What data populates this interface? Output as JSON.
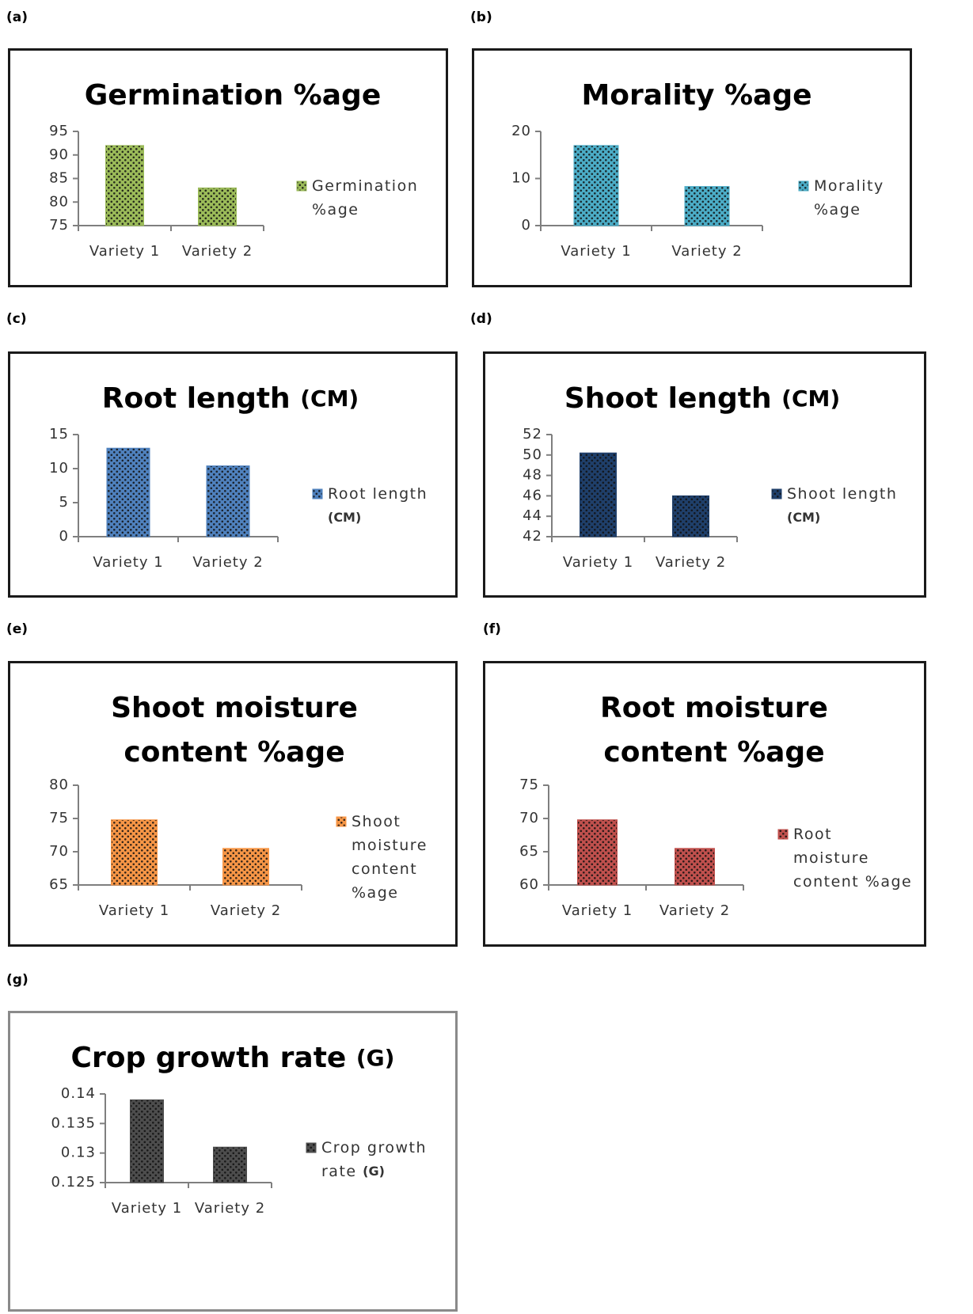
{
  "panel_labels": [
    "(a)",
    "(b)",
    "(c)",
    "(d)",
    "(e)",
    "(f)",
    "(g)"
  ],
  "chart_data": [
    {
      "id": "a",
      "type": "bar",
      "title_lines": [
        [
          {
            "text": "Germination %age"
          }
        ]
      ],
      "categories": [
        "Variety 1",
        "Variety 2"
      ],
      "series": [
        {
          "name": "Germination %age",
          "values": [
            92,
            83
          ]
        }
      ],
      "ylim": [
        75,
        95
      ],
      "yticks": [
        95,
        90,
        85,
        80,
        75
      ],
      "legend_lines": [
        [
          {
            "text": "Germination"
          }
        ],
        [
          {
            "text": "%age"
          }
        ]
      ],
      "legend": "right",
      "grid": false,
      "color": "#9bbb59"
    },
    {
      "id": "b",
      "type": "bar",
      "title_lines": [
        [
          {
            "text": "Morality %age"
          }
        ]
      ],
      "categories": [
        "Variety 1",
        "Variety 2"
      ],
      "series": [
        {
          "name": "Morality %age",
          "values": [
            17,
            8.3
          ]
        }
      ],
      "ylim": [
        0,
        20
      ],
      "yticks": [
        20,
        10,
        0
      ],
      "legend_lines": [
        [
          {
            "text": "Morality"
          }
        ],
        [
          {
            "text": "%age"
          }
        ]
      ],
      "legend": "right",
      "grid": false,
      "color": "#4bacc6"
    },
    {
      "id": "c",
      "type": "bar",
      "title_lines": [
        [
          {
            "text": "Root length "
          },
          {
            "text": "(CM)",
            "unit": true
          }
        ]
      ],
      "categories": [
        "Variety 1",
        "Variety 2"
      ],
      "series": [
        {
          "name": "Root length (CM)",
          "values": [
            13,
            10.4
          ]
        }
      ],
      "ylim": [
        0,
        15
      ],
      "yticks": [
        15,
        10,
        5,
        0
      ],
      "legend_lines": [
        [
          {
            "text": "Root length"
          }
        ],
        [
          {
            "text": "(CM)",
            "unit": true
          }
        ]
      ],
      "legend": "right",
      "grid": false,
      "color": "#4f81bd"
    },
    {
      "id": "d",
      "type": "bar",
      "title_lines": [
        [
          {
            "text": "Shoot length "
          },
          {
            "text": "(CM)",
            "unit": true
          }
        ]
      ],
      "categories": [
        "Variety 1",
        "Variety 2"
      ],
      "series": [
        {
          "name": "Shoot length (CM)",
          "values": [
            50.2,
            46
          ]
        }
      ],
      "ylim": [
        42,
        52
      ],
      "yticks": [
        52,
        50,
        48,
        46,
        44,
        42
      ],
      "legend_lines": [
        [
          {
            "text": "Shoot length"
          }
        ],
        [
          {
            "text": "(CM)",
            "unit": true
          }
        ]
      ],
      "legend": "right",
      "grid": false,
      "color": "#1f3f6a"
    },
    {
      "id": "e",
      "type": "bar",
      "title_lines": [
        [
          {
            "text": "Shoot moisture"
          }
        ],
        [
          {
            "text": "content %age"
          }
        ]
      ],
      "categories": [
        "Variety 1",
        "Variety 2"
      ],
      "series": [
        {
          "name": "Shoot moisture content %age",
          "values": [
            74.8,
            70.5
          ]
        }
      ],
      "ylim": [
        65,
        80
      ],
      "yticks": [
        80,
        75,
        70,
        65
      ],
      "legend_lines": [
        [
          {
            "text": "Shoot"
          }
        ],
        [
          {
            "text": "moisture"
          }
        ],
        [
          {
            "text": "content"
          }
        ],
        [
          {
            "text": "%age"
          }
        ]
      ],
      "legend": "right",
      "grid": false,
      "color": "#f79646"
    },
    {
      "id": "f",
      "type": "bar",
      "title_lines": [
        [
          {
            "text": "Root moisture"
          }
        ],
        [
          {
            "text": "content %age"
          }
        ]
      ],
      "categories": [
        "Variety 1",
        "Variety 2"
      ],
      "series": [
        {
          "name": "Root moisture content %age",
          "values": [
            69.8,
            65.5
          ]
        }
      ],
      "ylim": [
        60,
        75
      ],
      "yticks": [
        75,
        70,
        65,
        60
      ],
      "legend_lines": [
        [
          {
            "text": "Root"
          }
        ],
        [
          {
            "text": "moisture"
          }
        ],
        [
          {
            "text": "content %age"
          }
        ]
      ],
      "legend": "right",
      "grid": false,
      "color": "#c0504d"
    },
    {
      "id": "g",
      "type": "bar",
      "title_lines": [
        [
          {
            "text": "Crop growth rate "
          },
          {
            "text": "(G)",
            "unit": true
          }
        ]
      ],
      "categories": [
        "Variety 1",
        "Variety 2"
      ],
      "series": [
        {
          "name": "Crop growth rate (G)",
          "values": [
            0.139,
            0.131
          ]
        }
      ],
      "ylim": [
        0.125,
        0.14
      ],
      "yticks": [
        "0.14",
        "0.135",
        "0.13",
        "0.125"
      ],
      "legend_lines": [
        [
          {
            "text": "Crop growth"
          }
        ],
        [
          {
            "text": "rate "
          },
          {
            "text": "(G)",
            "unit": true
          }
        ]
      ],
      "legend": "right",
      "grid": false,
      "color": "#4d4d4d"
    }
  ]
}
